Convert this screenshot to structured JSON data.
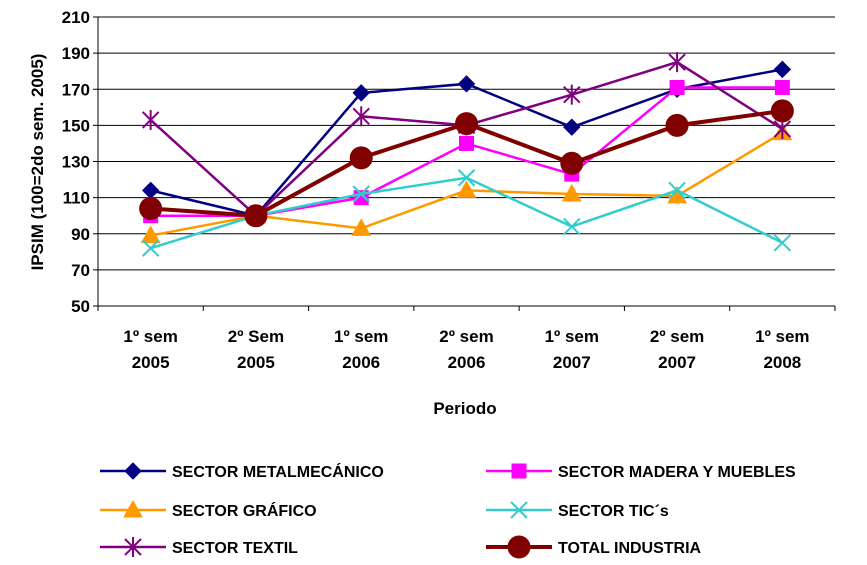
{
  "chart_data": {
    "type": "line",
    "title": "",
    "xlabel": "Periodo",
    "ylabel": "IPSIM (100=2do sem. 2005)",
    "ylim": [
      50,
      210
    ],
    "yticks": [
      50,
      70,
      90,
      110,
      130,
      150,
      170,
      190,
      210
    ],
    "grid": "horizontal",
    "legend_position": "bottom",
    "categories": [
      [
        "1º sem",
        "2005"
      ],
      [
        "2º Sem",
        "2005"
      ],
      [
        "1º sem",
        "2006"
      ],
      [
        "2º sem",
        "2006"
      ],
      [
        "1º sem",
        "2007"
      ],
      [
        "2º sem",
        "2007"
      ],
      [
        "1º sem",
        "2008"
      ]
    ],
    "series": [
      {
        "name": "SECTOR METALMECÁNICO",
        "color": "#000080",
        "marker": "diamond",
        "values": [
          114,
          100,
          168,
          173,
          149,
          170,
          181
        ]
      },
      {
        "name": "SECTOR MADERA Y MUEBLES",
        "color": "#FF00FF",
        "marker": "square",
        "values": [
          100,
          100,
          110,
          140,
          123,
          171,
          171
        ]
      },
      {
        "name": "SECTOR GRÁFICO",
        "color": "#FF9900",
        "marker": "triangle",
        "values": [
          89,
          100,
          93,
          114,
          112,
          111,
          146
        ]
      },
      {
        "name": "SECTOR TIC´s",
        "color": "#33CCCC",
        "marker": "x",
        "values": [
          82,
          100,
          112,
          121,
          94,
          114,
          85
        ]
      },
      {
        "name": "SECTOR TEXTIL",
        "color": "#800080",
        "marker": "star",
        "values": [
          153,
          100,
          155,
          150,
          167,
          185,
          148
        ]
      },
      {
        "name": "TOTAL INDUSTRIA",
        "color": "#800000",
        "marker": "circle",
        "values": [
          104,
          100,
          132,
          151,
          129,
          150,
          158
        ]
      }
    ]
  }
}
